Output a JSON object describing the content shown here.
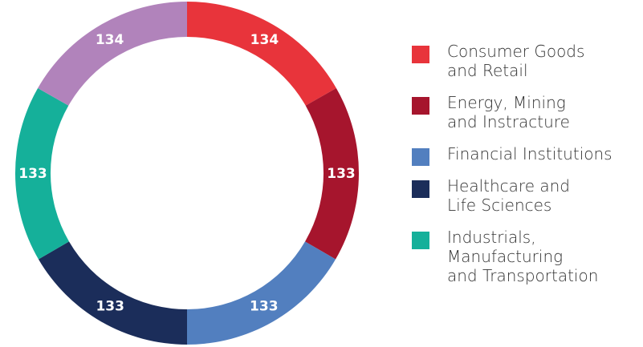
{
  "chart_data": {
    "type": "donut",
    "categories": [
      "Consumer Goods\nand Retail",
      "Energy, Mining\nand Instracture",
      "Financial Institutions",
      "Healthcare and\nLife Sciences",
      "Industrials,\nManufacturing\nand Transportation",
      null
    ],
    "values": [
      134,
      133,
      133,
      133,
      133,
      134
    ],
    "colors": [
      "#e8343b",
      "#a6152d",
      "#527fbf",
      "#1b2d5a",
      "#15b09a",
      "#b183bb"
    ]
  }
}
